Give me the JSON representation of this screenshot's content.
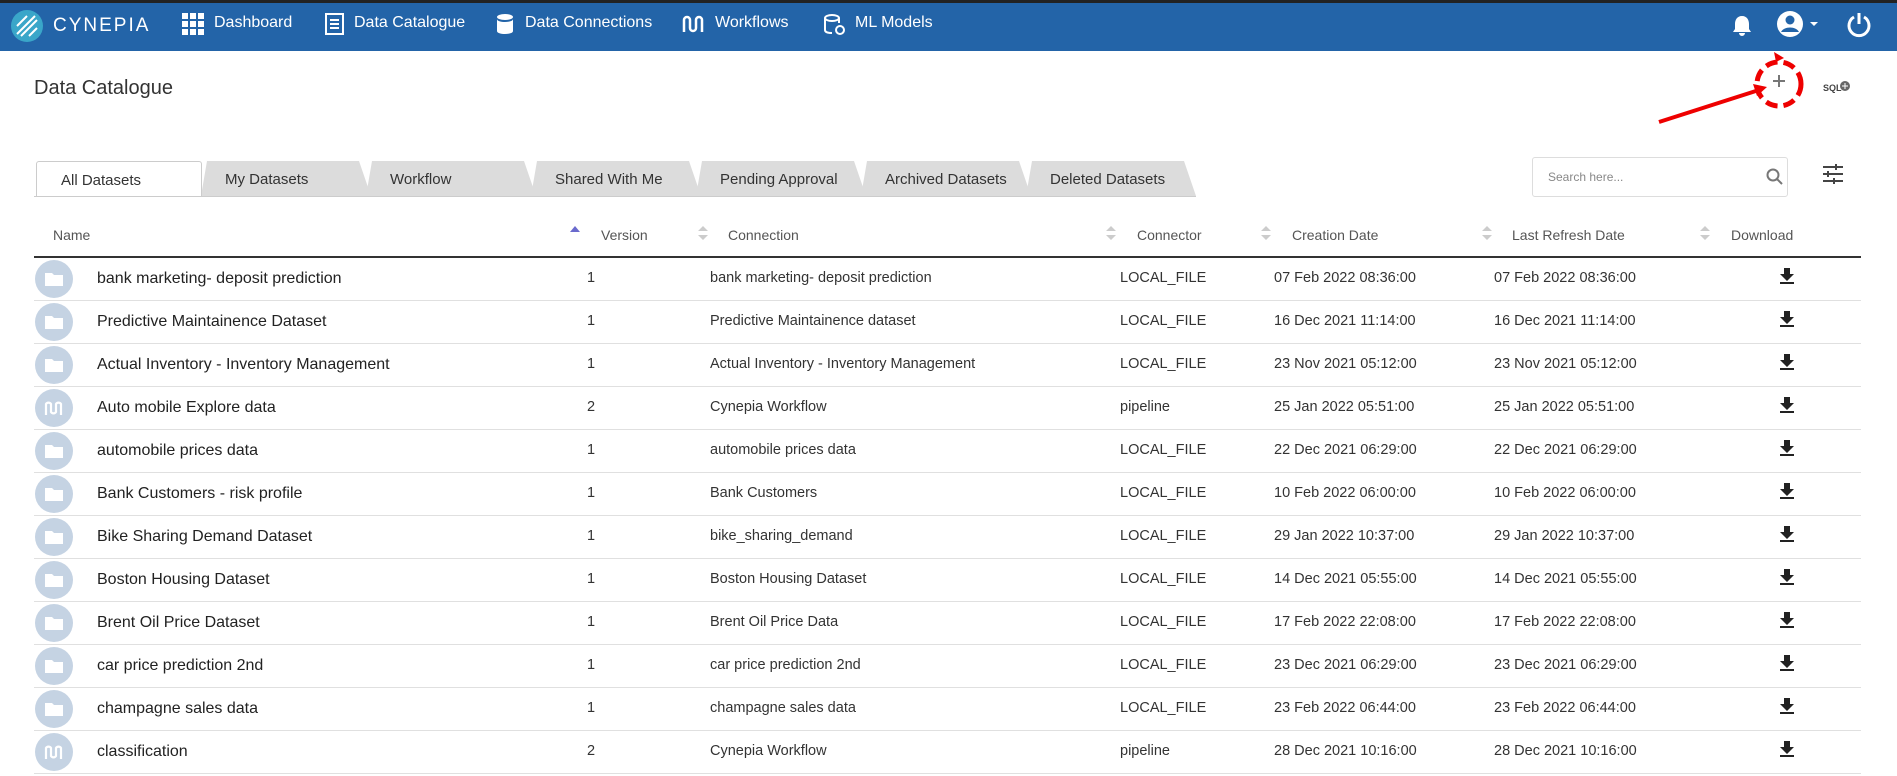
{
  "brand": "CYNEPIA",
  "nav": [
    "Dashboard",
    "Data Catalogue",
    "Data Connections",
    "Workflows",
    "ML Models"
  ],
  "page_title": "Data Catalogue",
  "sql_label": "SQL",
  "tabs": [
    "All Datasets",
    "My Datasets",
    "Workflow",
    "Shared With Me",
    "Pending Approval",
    "Archived Datasets",
    "Deleted Datasets"
  ],
  "search_placeholder": "Search here...",
  "table": {
    "columns": [
      "Name",
      "Version",
      "Connection",
      "Connector",
      "Creation Date",
      "Last Refresh Date",
      "Download"
    ],
    "rows": [
      [
        "bank marketing- deposit prediction",
        "1",
        "bank marketing- deposit prediction",
        "LOCAL_FILE",
        "07 Feb 2022 08:36:00",
        "07 Feb 2022 08:36:00"
      ],
      [
        "Predictive Maintainence Dataset",
        "1",
        "Predictive Maintainence dataset",
        "LOCAL_FILE",
        "16 Dec 2021 11:14:00",
        "16 Dec 2021 11:14:00"
      ],
      [
        "Actual Inventory - Inventory Management",
        "1",
        "Actual Inventory - Inventory Management",
        "LOCAL_FILE",
        "23 Nov 2021 05:12:00",
        "23 Nov 2021 05:12:00"
      ],
      [
        "Auto mobile Explore data",
        "2",
        "Cynepia Workflow",
        "pipeline",
        "25 Jan 2022 05:51:00",
        "25 Jan 2022 05:51:00"
      ],
      [
        "automobile prices data",
        "1",
        "automobile prices data",
        "LOCAL_FILE",
        "22 Dec 2021 06:29:00",
        "22 Dec 2021 06:29:00"
      ],
      [
        "Bank Customers - risk profile",
        "1",
        "Bank Customers",
        "LOCAL_FILE",
        "10 Feb 2022 06:00:00",
        "10 Feb 2022 06:00:00"
      ],
      [
        "Bike Sharing Demand Dataset",
        "1",
        "bike_sharing_demand",
        "LOCAL_FILE",
        "29 Jan 2022 10:37:00",
        "29 Jan 2022 10:37:00"
      ],
      [
        "Boston Housing Dataset",
        "1",
        "Boston Housing Dataset",
        "LOCAL_FILE",
        "14 Dec 2021 05:55:00",
        "14 Dec 2021 05:55:00"
      ],
      [
        "Brent Oil Price Dataset",
        "1",
        "Brent Oil Price Data",
        "LOCAL_FILE",
        "17 Feb 2022 22:08:00",
        "17 Feb 2022 22:08:00"
      ],
      [
        "car price prediction 2nd",
        "1",
        "car price prediction 2nd",
        "LOCAL_FILE",
        "23 Dec 2021 06:29:00",
        "23 Dec 2021 06:29:00"
      ],
      [
        "champagne sales data",
        "1",
        "champagne sales data",
        "LOCAL_FILE",
        "23 Feb 2022 06:44:00",
        "23 Feb 2022 06:44:00"
      ],
      [
        "classification",
        "2",
        "Cynepia Workflow",
        "pipeline",
        "28 Dec 2021 10:16:00",
        "28 Dec 2021 10:16:00"
      ]
    ]
  }
}
